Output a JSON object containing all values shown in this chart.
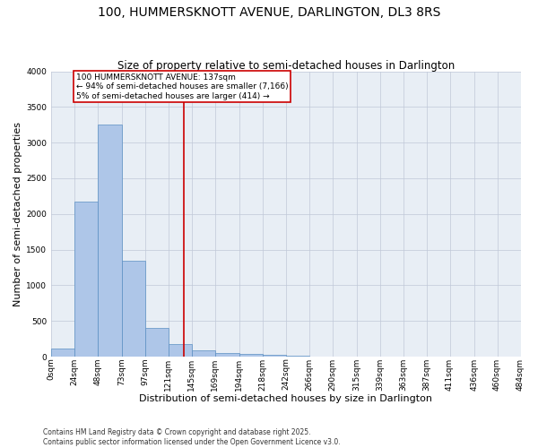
{
  "title": "100, HUMMERSKNOTT AVENUE, DARLINGTON, DL3 8RS",
  "subtitle": "Size of property relative to semi-detached houses in Darlington",
  "xlabel": "Distribution of semi-detached houses by size in Darlington",
  "ylabel": "Number of semi-detached properties",
  "bin_labels": [
    "0sqm",
    "24sqm",
    "48sqm",
    "73sqm",
    "97sqm",
    "121sqm",
    "145sqm",
    "169sqm",
    "194sqm",
    "218sqm",
    "242sqm",
    "266sqm",
    "290sqm",
    "315sqm",
    "339sqm",
    "363sqm",
    "387sqm",
    "411sqm",
    "436sqm",
    "460sqm",
    "484sqm"
  ],
  "bin_edges": [
    0,
    24,
    48,
    73,
    97,
    121,
    145,
    169,
    194,
    218,
    242,
    266,
    290,
    315,
    339,
    363,
    387,
    411,
    436,
    460,
    484
  ],
  "bar_values": [
    120,
    2175,
    3250,
    1350,
    400,
    175,
    90,
    55,
    40,
    25,
    10,
    5,
    3,
    2,
    1,
    1,
    0,
    0,
    0,
    0
  ],
  "bar_color": "#aec6e8",
  "bar_edge_color": "#5a8fc2",
  "property_size": 137,
  "vline_color": "#cc0000",
  "annotation_text": "100 HUMMERSKNOTT AVENUE: 137sqm\n← 94% of semi-detached houses are smaller (7,166)\n5% of semi-detached houses are larger (414) →",
  "annotation_box_color": "#ffffff",
  "annotation_box_edge": "#cc0000",
  "ylim": [
    0,
    4000
  ],
  "yticks": [
    0,
    500,
    1000,
    1500,
    2000,
    2500,
    3000,
    3500,
    4000
  ],
  "background_color": "#e8eef5",
  "footer_line1": "Contains HM Land Registry data © Crown copyright and database right 2025.",
  "footer_line2": "Contains public sector information licensed under the Open Government Licence v3.0.",
  "title_fontsize": 10,
  "subtitle_fontsize": 8.5,
  "ylabel_fontsize": 8,
  "xlabel_fontsize": 8,
  "tick_fontsize": 6.5,
  "annotation_fontsize": 6.5,
  "footer_fontsize": 5.5
}
